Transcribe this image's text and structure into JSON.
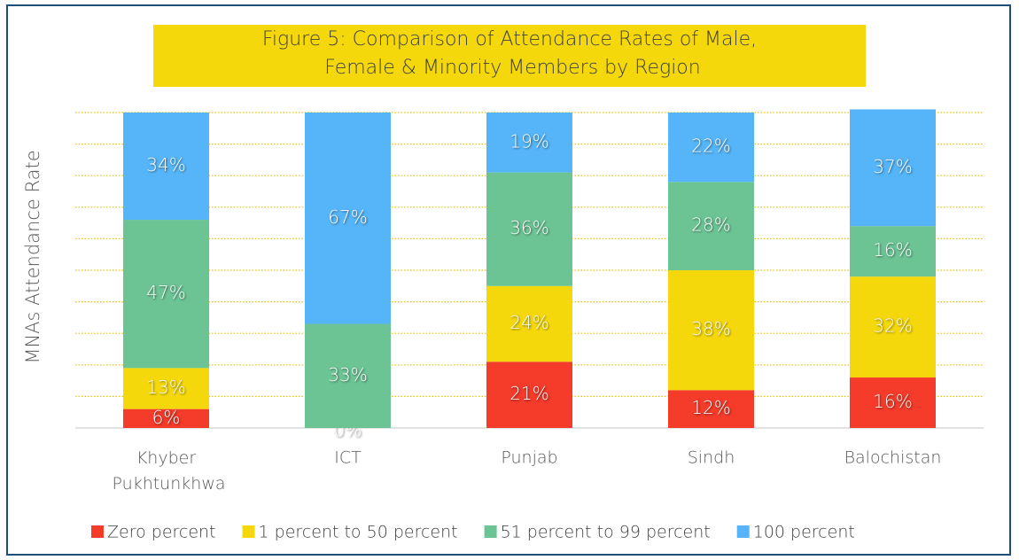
{
  "chart_data": {
    "type": "stacked_bar",
    "title": "Figure 5: Comparison of Attendance Rates of Male, Female & Minority Members by Region",
    "ylabel": "MNAs Attendance Rate",
    "categories": [
      "Khyber Pukhtunkhwa",
      "ICT",
      "Punjab",
      "Sindh",
      "Balochistan"
    ],
    "series": [
      {
        "name": "Zero percent",
        "color": "#f53b2a",
        "values": [
          6,
          0,
          21,
          12,
          16
        ],
        "value_labels": [
          "6%",
          "0%",
          "21%",
          "12%",
          "16%"
        ]
      },
      {
        "name": "1 percent to 50 percent",
        "color": "#f5d80c",
        "values": [
          13,
          null,
          24,
          38,
          32
        ],
        "value_labels": [
          "13%",
          null,
          "24%",
          "38%",
          "32%"
        ]
      },
      {
        "name": "51 percent to 99 percent",
        "color": "#6cc495",
        "values": [
          47,
          33,
          36,
          28,
          16
        ],
        "value_labels": [
          "47%",
          "33%",
          "36%",
          "28%",
          "16%"
        ]
      },
      {
        "name": "100 percent",
        "color": "#56b5f8",
        "values": [
          34,
          67,
          19,
          22,
          37
        ],
        "value_labels": [
          "34%",
          "67%",
          "19%",
          "22%",
          "37%"
        ]
      }
    ],
    "ylim": [
      0,
      100
    ],
    "yticks": [
      0,
      10,
      20,
      30,
      40,
      50,
      60,
      70,
      80,
      90,
      100
    ],
    "grid": true,
    "legend": "bottom"
  }
}
